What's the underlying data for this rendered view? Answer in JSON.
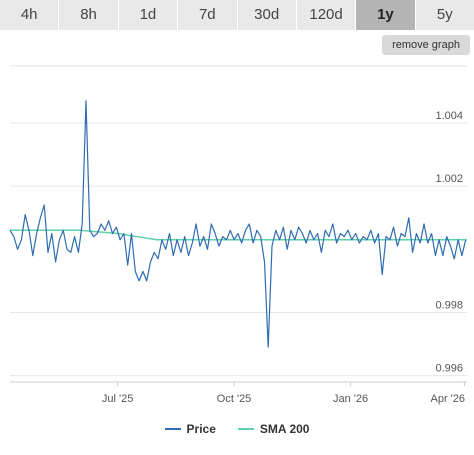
{
  "tabs": [
    {
      "label": "4h",
      "active": false
    },
    {
      "label": "8h",
      "active": false
    },
    {
      "label": "1d",
      "active": false
    },
    {
      "label": "7d",
      "active": false
    },
    {
      "label": "30d",
      "active": false
    },
    {
      "label": "120d",
      "active": false
    },
    {
      "label": "1y",
      "active": true
    },
    {
      "label": "5y",
      "active": false
    }
  ],
  "remove_button_label": "remove graph",
  "colors": {
    "price": "#2f6db0",
    "sma": "#5ed3a8",
    "grid": "#e6e6e6",
    "axis_text": "#555555"
  },
  "chart_data": {
    "type": "line",
    "x_ticks": [
      {
        "label": "Jul '25",
        "date": "2025-07-01"
      },
      {
        "label": "Oct '25",
        "date": "2025-10-01"
      },
      {
        "label": "Jan '26",
        "date": "2026-01-01"
      },
      {
        "label": "Apr '26",
        "date": "2026-04-01"
      }
    ],
    "xlim": [
      "2025-04-07",
      "2026-04-03"
    ],
    "y_ticks": [
      {
        "label": "0.996",
        "value": 0.996
      },
      {
        "label": "0.998",
        "value": 0.998
      },
      {
        "label": "1.002",
        "value": 1.002
      },
      {
        "label": "1.004",
        "value": 1.004
      }
    ],
    "ylim": [
      0.9958,
      1.0058
    ],
    "grid": true,
    "legend_position": "bottom",
    "series": [
      {
        "name": "Price",
        "key": "price",
        "points": [
          [
            "2025-04-07",
            1.0006
          ],
          [
            "2025-04-10",
            1.0004
          ],
          [
            "2025-04-13",
            1.0
          ],
          [
            "2025-04-16",
            1.0003
          ],
          [
            "2025-04-19",
            1.0011
          ],
          [
            "2025-04-22",
            1.0006
          ],
          [
            "2025-04-25",
            0.9998
          ],
          [
            "2025-04-28",
            1.0005
          ],
          [
            "2025-05-01",
            1.001
          ],
          [
            "2025-05-04",
            1.0014
          ],
          [
            "2025-05-07",
            0.9999
          ],
          [
            "2025-05-10",
            1.0005
          ],
          [
            "2025-05-13",
            0.9996
          ],
          [
            "2025-05-16",
            1.0003
          ],
          [
            "2025-05-19",
            1.0006
          ],
          [
            "2025-05-22",
            1.0
          ],
          [
            "2025-05-25",
            0.9999
          ],
          [
            "2025-05-28",
            1.0004
          ],
          [
            "2025-05-31",
            0.9999
          ],
          [
            "2025-06-03",
            1.0008
          ],
          [
            "2025-06-06",
            1.0047
          ],
          [
            "2025-06-09",
            1.0006
          ],
          [
            "2025-06-12",
            1.0004
          ],
          [
            "2025-06-15",
            1.0005
          ],
          [
            "2025-06-18",
            1.0008
          ],
          [
            "2025-06-21",
            1.0006
          ],
          [
            "2025-06-24",
            1.0009
          ],
          [
            "2025-06-27",
            1.0005
          ],
          [
            "2025-06-30",
            1.0007
          ],
          [
            "2025-07-03",
            1.0003
          ],
          [
            "2025-07-06",
            1.0005
          ],
          [
            "2025-07-09",
            0.9995
          ],
          [
            "2025-07-12",
            1.0005
          ],
          [
            "2025-07-15",
            0.9993
          ],
          [
            "2025-07-18",
            0.999
          ],
          [
            "2025-07-21",
            0.9993
          ],
          [
            "2025-07-24",
            0.999
          ],
          [
            "2025-07-27",
            0.9996
          ],
          [
            "2025-07-30",
            0.9999
          ],
          [
            "2025-08-02",
            0.9997
          ],
          [
            "2025-08-05",
            1.0003
          ],
          [
            "2025-08-08",
            1.0
          ],
          [
            "2025-08-11",
            1.0005
          ],
          [
            "2025-08-14",
            0.9998
          ],
          [
            "2025-08-17",
            1.0003
          ],
          [
            "2025-08-20",
            0.9999
          ],
          [
            "2025-08-23",
            1.0004
          ],
          [
            "2025-08-26",
            0.9998
          ],
          [
            "2025-08-29",
            1.0002
          ],
          [
            "2025-09-01",
            1.0008
          ],
          [
            "2025-09-04",
            1.0001
          ],
          [
            "2025-09-07",
            1.0004
          ],
          [
            "2025-09-10",
            1.0
          ],
          [
            "2025-09-13",
            1.0008
          ],
          [
            "2025-09-16",
            1.0005
          ],
          [
            "2025-09-19",
            1.0001
          ],
          [
            "2025-09-22",
            1.0004
          ],
          [
            "2025-09-25",
            1.0003
          ],
          [
            "2025-09-28",
            1.0006
          ],
          [
            "2025-10-01",
            1.0003
          ],
          [
            "2025-10-04",
            1.0005
          ],
          [
            "2025-10-07",
            1.0002
          ],
          [
            "2025-10-10",
            1.0006
          ],
          [
            "2025-10-13",
            1.0008
          ],
          [
            "2025-10-16",
            1.0002
          ],
          [
            "2025-10-19",
            1.0006
          ],
          [
            "2025-10-22",
            1.0004
          ],
          [
            "2025-10-25",
            0.9996
          ],
          [
            "2025-10-28",
            0.9969
          ],
          [
            "2025-10-31",
            1.0001
          ],
          [
            "2025-11-03",
            1.0006
          ],
          [
            "2025-11-06",
            1.0003
          ],
          [
            "2025-11-09",
            1.0007
          ],
          [
            "2025-11-12",
            1.0
          ],
          [
            "2025-11-15",
            1.0006
          ],
          [
            "2025-11-18",
            1.0003
          ],
          [
            "2025-11-21",
            1.0007
          ],
          [
            "2025-11-24",
            1.0005
          ],
          [
            "2025-11-27",
            1.0002
          ],
          [
            "2025-11-30",
            1.0006
          ],
          [
            "2025-12-03",
            1.0003
          ],
          [
            "2025-12-06",
            1.0005
          ],
          [
            "2025-12-09",
            0.9999
          ],
          [
            "2025-12-12",
            1.0006
          ],
          [
            "2025-12-15",
            1.0004
          ],
          [
            "2025-12-18",
            1.0008
          ],
          [
            "2025-12-21",
            1.0002
          ],
          [
            "2025-12-24",
            1.0005
          ],
          [
            "2025-12-27",
            1.0004
          ],
          [
            "2025-12-30",
            1.0006
          ],
          [
            "2026-01-02",
            1.0003
          ],
          [
            "2026-01-05",
            1.0005
          ],
          [
            "2026-01-08",
            1.0002
          ],
          [
            "2026-01-11",
            1.0004
          ],
          [
            "2026-01-14",
            1.0003
          ],
          [
            "2026-01-17",
            1.0006
          ],
          [
            "2026-01-20",
            1.0002
          ],
          [
            "2026-01-23",
            1.0005
          ],
          [
            "2026-01-26",
            0.9992
          ],
          [
            "2026-01-29",
            1.0004
          ],
          [
            "2026-02-01",
            1.0003
          ],
          [
            "2026-02-04",
            1.0007
          ],
          [
            "2026-02-07",
            1.0001
          ],
          [
            "2026-02-10",
            1.0005
          ],
          [
            "2026-02-13",
            1.0004
          ],
          [
            "2026-02-16",
            1.001
          ],
          [
            "2026-02-19",
            0.9999
          ],
          [
            "2026-02-22",
            1.0005
          ],
          [
            "2026-02-25",
            1.0002
          ],
          [
            "2026-02-28",
            1.0008
          ],
          [
            "2026-03-03",
            1.0002
          ],
          [
            "2026-03-06",
            1.0005
          ],
          [
            "2026-03-09",
            0.9998
          ],
          [
            "2026-03-12",
            1.0003
          ],
          [
            "2026-03-15",
            0.9998
          ],
          [
            "2026-03-18",
            1.0004
          ],
          [
            "2026-03-21",
            1.0001
          ],
          [
            "2026-03-24",
            0.9997
          ],
          [
            "2026-03-27",
            1.0003
          ],
          [
            "2026-03-30",
            0.9998
          ],
          [
            "2026-04-02",
            1.0003
          ]
        ]
      },
      {
        "name": "SMA 200",
        "key": "sma",
        "points": [
          [
            "2025-04-07",
            1.0006
          ],
          [
            "2025-05-01",
            1.0006
          ],
          [
            "2025-06-01",
            1.0006
          ],
          [
            "2025-07-01",
            1.0005
          ],
          [
            "2025-08-01",
            1.0003
          ],
          [
            "2025-09-01",
            1.0003
          ],
          [
            "2025-10-01",
            1.0003
          ],
          [
            "2025-11-01",
            1.0003
          ],
          [
            "2025-12-01",
            1.0003
          ],
          [
            "2026-01-01",
            1.0003
          ],
          [
            "2026-02-01",
            1.0003
          ],
          [
            "2026-03-01",
            1.0003
          ],
          [
            "2026-04-03",
            1.0003
          ]
        ]
      }
    ]
  }
}
